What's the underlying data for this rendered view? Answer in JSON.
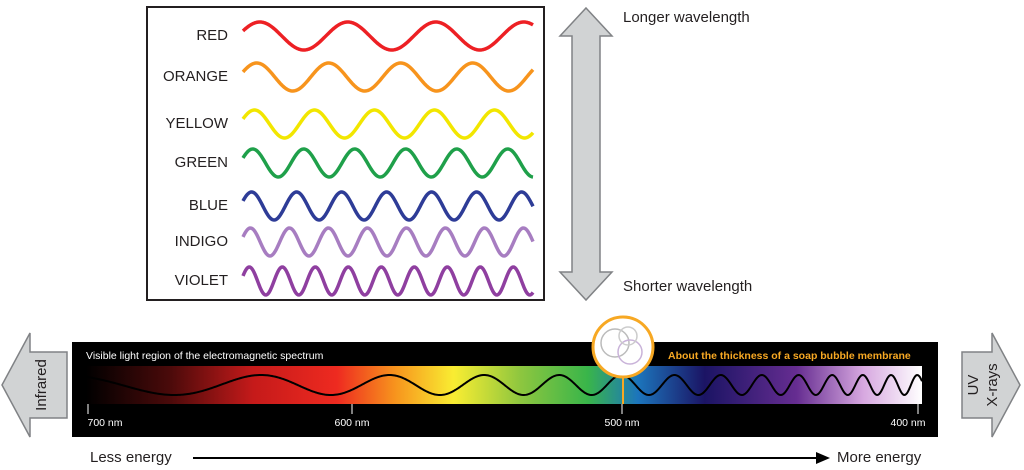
{
  "color_waves": [
    "RED",
    "ORANGE",
    "YELLOW",
    "GREEN",
    "BLUE",
    "INDIGO",
    "VIOLET"
  ],
  "wavelength_arrow": {
    "top": "Longer wavelength",
    "bottom": "Shorter wavelength"
  },
  "spectrum": {
    "title": "Visible light region of the electromagnetic spectrum",
    "annotation": "About the thickness of a soap bubble membrane",
    "ticks": [
      "700 nm",
      "600 nm",
      "500 nm",
      "400 nm"
    ]
  },
  "infrared": "Infrared",
  "uv": [
    "UV",
    "X-rays"
  ],
  "energy": {
    "left": "Less energy",
    "right": "More energy"
  }
}
